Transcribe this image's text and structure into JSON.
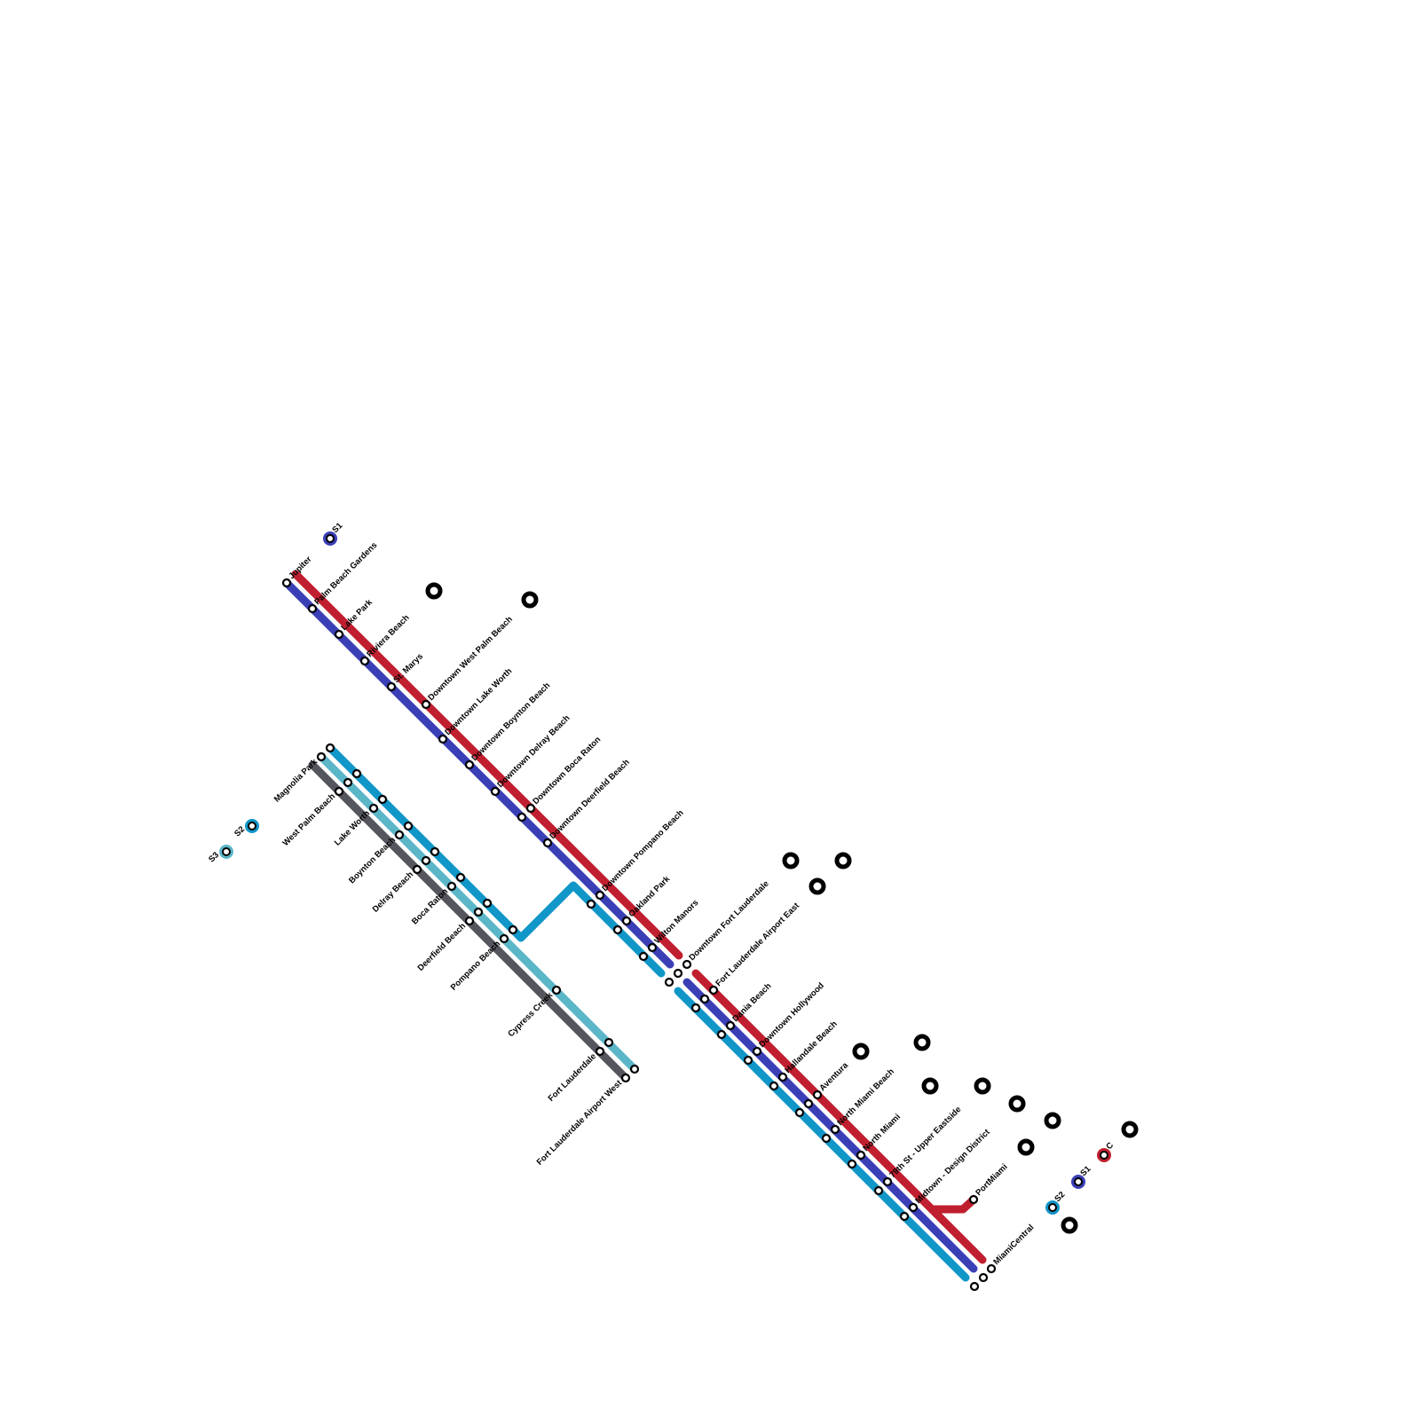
{
  "coastal_stations": [
    "Jupiter",
    "Palm Beach Gardens",
    "Lake Park",
    "Riviera Beach",
    "St. Marys",
    "Downtown West Palm Beach",
    "Downtown Lake Worth",
    "Downtown Boynton Beach",
    "Downtown Delray Beach",
    "Downtown Boca Raton",
    "Downtown Deerfield Beach",
    "Downtown Pompano Beach",
    "Oakland Park",
    "Wilton Manors",
    "Downtown Fort Lauderdale",
    "Fort Lauderdale Airport East",
    "Dania Beach",
    "Downtown Hollywood",
    "Hallandale Beach",
    "Aventura",
    "North Miami Beach",
    "North Miami",
    "79th St - Upper Eastside",
    "Midtown - Design District",
    "PortMiami",
    "MiamiCentral"
  ],
  "inland_stations": [
    "Magnolia Park",
    "West Palm Beach",
    "Lake Worth",
    "Boynton Beach",
    "Delray Beach",
    "Boca Raton",
    "Deerfield Beach",
    "Pompano Beach",
    "Cypress Creek",
    "Fort Lauderdale",
    "Fort Lauderdale Airport West"
  ],
  "route_badges": [
    "S1",
    "S2",
    "S3",
    "C",
    "S1",
    "S2"
  ]
}
